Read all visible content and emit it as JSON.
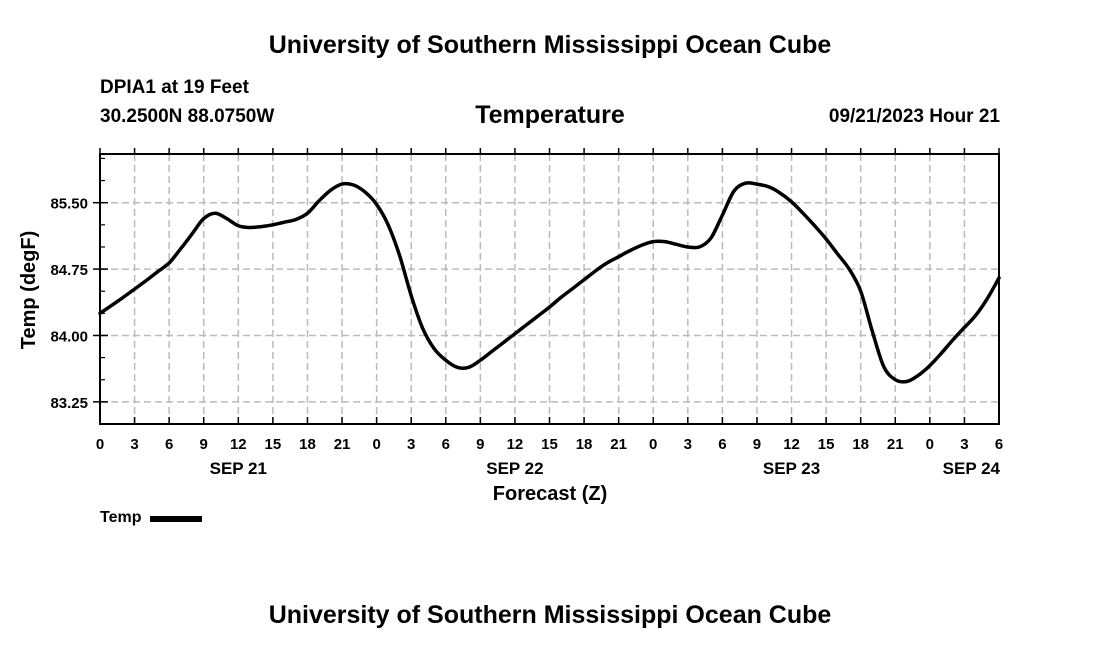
{
  "header": {
    "title": "University of Southern Mississippi Ocean Cube",
    "station": "DPIA1 at 19 Feet",
    "coords": "30.2500N  88.0750W",
    "datetime": "09/21/2023 Hour 21"
  },
  "footer": {
    "title": "University of Southern Mississippi Ocean Cube"
  },
  "colors": {
    "line": "#000000",
    "grid": "#bbbbbb",
    "background": "#ffffff"
  },
  "chart_data": {
    "type": "line",
    "title": "Temperature",
    "xlabel": "Forecast (Z)",
    "ylabel": "Temp (degF)",
    "ylim": [
      83.0,
      86.05
    ],
    "yticks": [
      "85.50",
      "84.75",
      "84.00",
      "83.25"
    ],
    "ytick_values": [
      85.5,
      84.75,
      84.0,
      83.25
    ],
    "xlim": [
      0,
      78
    ],
    "xtick_labels": [
      "0",
      "3",
      "6",
      "9",
      "12",
      "15",
      "18",
      "21",
      "0",
      "3",
      "6",
      "9",
      "12",
      "15",
      "18",
      "21",
      "0",
      "3",
      "6",
      "9",
      "12",
      "15",
      "18",
      "21",
      "0",
      "3",
      "6"
    ],
    "date_labels": [
      {
        "label": "SEP 21",
        "x": 12
      },
      {
        "label": "SEP 22",
        "x": 36
      },
      {
        "label": "SEP 23",
        "x": 60
      },
      {
        "label": "SEP 24",
        "x": 78
      }
    ],
    "grid": true,
    "legend_position": "bottom-left",
    "series": [
      {
        "name": "Temp",
        "x": [
          0,
          2,
          4,
          5,
          6,
          7,
          8,
          9,
          10,
          11,
          12,
          13,
          14,
          15,
          16,
          17,
          18,
          19,
          20,
          21,
          22,
          23,
          24,
          25,
          26,
          27,
          28,
          29,
          30,
          31,
          32,
          33,
          34,
          35,
          36,
          37,
          38,
          39,
          40,
          41,
          42,
          43,
          44,
          45,
          46,
          47,
          48,
          49,
          50,
          51,
          52,
          53,
          54,
          55,
          56,
          57,
          58,
          59,
          60,
          61,
          62,
          63,
          64,
          65,
          66,
          67,
          68,
          69,
          70,
          71,
          72,
          73,
          74,
          75,
          76,
          77,
          78
        ],
        "values": [
          84.25,
          84.43,
          84.62,
          84.72,
          84.82,
          84.98,
          85.15,
          85.32,
          85.38,
          85.32,
          85.24,
          85.22,
          85.23,
          85.25,
          85.28,
          85.31,
          85.38,
          85.52,
          85.64,
          85.71,
          85.7,
          85.62,
          85.48,
          85.25,
          84.9,
          84.45,
          84.08,
          83.85,
          83.72,
          83.64,
          83.64,
          83.72,
          83.82,
          83.92,
          84.02,
          84.12,
          84.22,
          84.32,
          84.43,
          84.53,
          84.63,
          84.73,
          84.82,
          84.89,
          84.96,
          85.02,
          85.06,
          85.06,
          85.03,
          85.0,
          85.0,
          85.1,
          85.36,
          85.63,
          85.72,
          85.71,
          85.68,
          85.61,
          85.51,
          85.38,
          85.24,
          85.09,
          84.92,
          84.75,
          84.5,
          84.05,
          83.65,
          83.5,
          83.48,
          83.55,
          83.66,
          83.8,
          83.95,
          84.09,
          84.23,
          84.42,
          84.65
        ]
      }
    ]
  }
}
